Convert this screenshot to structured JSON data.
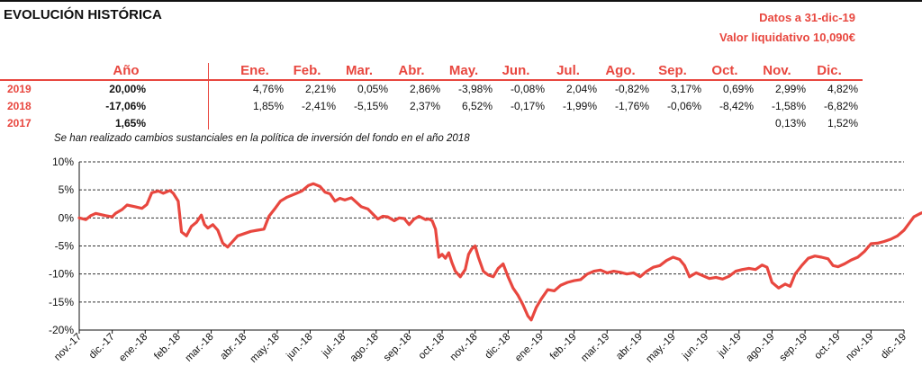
{
  "header": {
    "title": "EVOLUCIÓN HISTÓRICA",
    "date": "Datos a 31-dic-19",
    "nav": "Valor liquidativo 10,090€"
  },
  "returns_table": {
    "year_header": "Año",
    "months": [
      "Ene.",
      "Feb.",
      "Mar.",
      "Abr.",
      "May.",
      "Jun.",
      "Jul.",
      "Ago.",
      "Sep.",
      "Oct.",
      "Nov.",
      "Dic."
    ],
    "rows": [
      {
        "year": "2019",
        "annual": "20,00%",
        "monthly": [
          "4,76%",
          "2,21%",
          "0,05%",
          "2,86%",
          "-3,98%",
          "-0,08%",
          "2,04%",
          "-0,82%",
          "3,17%",
          "0,69%",
          "2,99%",
          "4,82%"
        ]
      },
      {
        "year": "2018",
        "annual": "-17,06%",
        "monthly": [
          "1,85%",
          "-2,41%",
          "-5,15%",
          "2,37%",
          "6,52%",
          "-0,17%",
          "-1,99%",
          "-1,76%",
          "-0,06%",
          "-8,42%",
          "-1,58%",
          "-6,82%"
        ]
      },
      {
        "year": "2017",
        "annual": "1,65%",
        "monthly": [
          "",
          "",
          "",
          "",
          "",
          "",
          "",
          "",
          "",
          "",
          "0,13%",
          "1,52%"
        ]
      }
    ]
  },
  "note": "Se han realizado cambios sustanciales en la política de inversión del fondo en el año 2018",
  "chart_data": {
    "type": "line",
    "x_tick_labels": [
      "nov.-17",
      "dic.-17",
      "ene.-18",
      "feb.-18",
      "mar.-18",
      "abr.-18",
      "may.-18",
      "jun.-18",
      "jul.-18",
      "ago.-18",
      "sep.-18",
      "oct.-18",
      "nov.-18",
      "dic.-18",
      "ene.-19",
      "feb.-19",
      "mar.-19",
      "abr.-19",
      "may.-19",
      "jun.-19",
      "jul.-19",
      "ago.-19",
      "sep.-19",
      "oct.-19",
      "nov.-19",
      "dic.-19"
    ],
    "y_tick_labels": [
      "10%",
      "5%",
      "0%",
      "-5%",
      "-10%",
      "-15%",
      "-20%"
    ],
    "ylim": [
      -20,
      10
    ],
    "grid": "horizontal dashed",
    "line_color": "#e8473f",
    "series": [
      {
        "values": [
          [
            0.0,
            0.0
          ],
          [
            0.2,
            -0.3
          ],
          [
            0.35,
            0.4
          ],
          [
            0.5,
            0.8
          ],
          [
            0.8,
            0.4
          ],
          [
            1.0,
            0.2
          ],
          [
            1.1,
            0.8
          ],
          [
            1.3,
            1.5
          ],
          [
            1.45,
            2.3
          ],
          [
            1.7,
            2.0
          ],
          [
            1.9,
            1.7
          ],
          [
            2.05,
            2.4
          ],
          [
            2.2,
            4.5
          ],
          [
            2.4,
            4.8
          ],
          [
            2.55,
            4.4
          ],
          [
            2.75,
            4.9
          ],
          [
            2.85,
            4.4
          ],
          [
            3.0,
            3.0
          ],
          [
            3.1,
            -2.5
          ],
          [
            3.25,
            -3.2
          ],
          [
            3.4,
            -1.5
          ],
          [
            3.55,
            -0.8
          ],
          [
            3.7,
            0.5
          ],
          [
            3.8,
            -1.2
          ],
          [
            3.9,
            -1.8
          ],
          [
            4.05,
            -1.2
          ],
          [
            4.2,
            -2.2
          ],
          [
            4.35,
            -4.5
          ],
          [
            4.5,
            -5.2
          ],
          [
            4.65,
            -4.2
          ],
          [
            4.8,
            -3.2
          ],
          [
            5.0,
            -2.8
          ],
          [
            5.2,
            -2.4
          ],
          [
            5.4,
            -2.2
          ],
          [
            5.6,
            -2.0
          ],
          [
            5.75,
            0.3
          ],
          [
            5.95,
            1.8
          ],
          [
            6.1,
            3.0
          ],
          [
            6.3,
            3.7
          ],
          [
            6.55,
            4.3
          ],
          [
            6.75,
            4.8
          ],
          [
            6.95,
            5.8
          ],
          [
            7.1,
            6.1
          ],
          [
            7.3,
            5.6
          ],
          [
            7.45,
            4.6
          ],
          [
            7.6,
            4.3
          ],
          [
            7.75,
            3.0
          ],
          [
            7.9,
            3.5
          ],
          [
            8.05,
            3.2
          ],
          [
            8.25,
            3.6
          ],
          [
            8.4,
            2.8
          ],
          [
            8.55,
            2.0
          ],
          [
            8.75,
            1.6
          ],
          [
            8.9,
            0.7
          ],
          [
            9.05,
            -0.2
          ],
          [
            9.2,
            0.3
          ],
          [
            9.35,
            0.2
          ],
          [
            9.55,
            -0.5
          ],
          [
            9.7,
            0.0
          ],
          [
            9.85,
            -0.1
          ],
          [
            10.0,
            -1.2
          ],
          [
            10.15,
            -0.2
          ],
          [
            10.3,
            0.3
          ],
          [
            10.5,
            -0.3
          ],
          [
            10.6,
            -0.2
          ],
          [
            10.7,
            -0.5
          ],
          [
            10.8,
            -2.0
          ],
          [
            10.9,
            -7.0
          ],
          [
            11.0,
            -6.5
          ],
          [
            11.1,
            -7.2
          ],
          [
            11.2,
            -6.2
          ],
          [
            11.3,
            -8.0
          ],
          [
            11.4,
            -9.5
          ],
          [
            11.55,
            -10.5
          ],
          [
            11.7,
            -9.2
          ],
          [
            11.8,
            -6.5
          ],
          [
            11.9,
            -5.5
          ],
          [
            12.0,
            -5.0
          ],
          [
            12.1,
            -7.0
          ],
          [
            12.25,
            -9.5
          ],
          [
            12.4,
            -10.2
          ],
          [
            12.55,
            -10.5
          ],
          [
            12.7,
            -9.0
          ],
          [
            12.85,
            -8.2
          ],
          [
            13.0,
            -10.5
          ],
          [
            13.15,
            -12.5
          ],
          [
            13.3,
            -13.8
          ],
          [
            13.45,
            -15.5
          ],
          [
            13.6,
            -17.5
          ],
          [
            13.7,
            -18.2
          ],
          [
            13.85,
            -16.0
          ],
          [
            14.0,
            -14.5
          ],
          [
            14.2,
            -12.8
          ],
          [
            14.4,
            -13.0
          ],
          [
            14.6,
            -12.0
          ],
          [
            14.8,
            -11.5
          ],
          [
            15.0,
            -11.2
          ],
          [
            15.2,
            -11.0
          ],
          [
            15.4,
            -10.0
          ],
          [
            15.6,
            -9.5
          ],
          [
            15.8,
            -9.3
          ],
          [
            16.0,
            -9.8
          ],
          [
            16.2,
            -9.5
          ],
          [
            16.4,
            -9.7
          ],
          [
            16.6,
            -10.0
          ],
          [
            16.8,
            -9.8
          ],
          [
            17.0,
            -10.5
          ],
          [
            17.2,
            -9.5
          ],
          [
            17.4,
            -8.8
          ],
          [
            17.6,
            -8.5
          ],
          [
            17.8,
            -7.6
          ],
          [
            18.0,
            -7.0
          ],
          [
            18.2,
            -7.4
          ],
          [
            18.35,
            -8.5
          ],
          [
            18.5,
            -10.5
          ],
          [
            18.7,
            -9.8
          ],
          [
            18.9,
            -10.3
          ],
          [
            19.1,
            -10.8
          ],
          [
            19.3,
            -10.6
          ],
          [
            19.5,
            -10.9
          ],
          [
            19.7,
            -10.4
          ],
          [
            19.9,
            -9.5
          ],
          [
            20.1,
            -9.2
          ],
          [
            20.3,
            -9.0
          ],
          [
            20.5,
            -9.2
          ],
          [
            20.7,
            -8.4
          ],
          [
            20.85,
            -8.8
          ],
          [
            21.0,
            -11.5
          ],
          [
            21.2,
            -12.5
          ],
          [
            21.4,
            -11.8
          ],
          [
            21.55,
            -12.2
          ],
          [
            21.7,
            -10.0
          ],
          [
            21.9,
            -8.5
          ],
          [
            22.1,
            -7.2
          ],
          [
            22.3,
            -6.8
          ],
          [
            22.5,
            -7.0
          ],
          [
            22.7,
            -7.3
          ],
          [
            22.85,
            -8.5
          ],
          [
            23.0,
            -8.7
          ],
          [
            23.2,
            -8.2
          ],
          [
            23.4,
            -7.5
          ],
          [
            23.6,
            -7.0
          ],
          [
            23.8,
            -6.0
          ],
          [
            24.0,
            -4.6
          ],
          [
            24.2,
            -4.5
          ],
          [
            24.4,
            -4.2
          ],
          [
            24.6,
            -3.8
          ],
          [
            24.8,
            -3.2
          ],
          [
            25.0,
            -2.2
          ],
          [
            25.15,
            -1.0
          ],
          [
            25.3,
            0.2
          ],
          [
            25.5,
            0.8
          ],
          [
            25.7,
            1.2
          ],
          [
            25.85,
            1.0
          ],
          [
            26.0,
            0.9
          ]
        ]
      }
    ]
  }
}
